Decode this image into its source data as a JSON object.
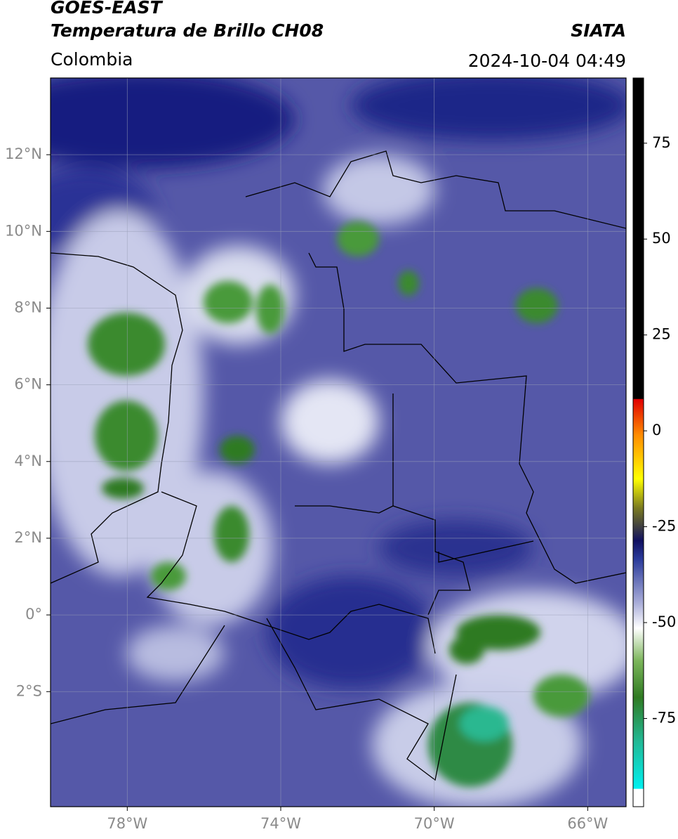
{
  "header": {
    "satellite": "GOES-EAST",
    "product": "Temperatura de Brillo CH08",
    "region": "Colombia",
    "source": "SIATA",
    "datetime": "2024-10-04 04:49"
  },
  "map": {
    "xlim": [
      -80,
      -65
    ],
    "ylim": [
      -5,
      14
    ],
    "xticks": [
      {
        "value": -78,
        "label": "78°W"
      },
      {
        "value": -74,
        "label": "74°W"
      },
      {
        "value": -70,
        "label": "70°W"
      },
      {
        "value": -66,
        "label": "66°W"
      }
    ],
    "yticks": [
      {
        "value": 12,
        "label": "12°N"
      },
      {
        "value": 10,
        "label": "10°N"
      },
      {
        "value": 8,
        "label": "8°N"
      },
      {
        "value": 6,
        "label": "6°N"
      },
      {
        "value": 4,
        "label": "4°N"
      },
      {
        "value": 2,
        "label": "2°N"
      },
      {
        "value": 0,
        "label": "0°"
      },
      {
        "value": -2,
        "label": "2°S"
      }
    ]
  },
  "colorbar": {
    "lim": [
      -98,
      92
    ],
    "ticks": [
      75,
      50,
      25,
      0,
      -25,
      -50,
      -75
    ]
  }
}
